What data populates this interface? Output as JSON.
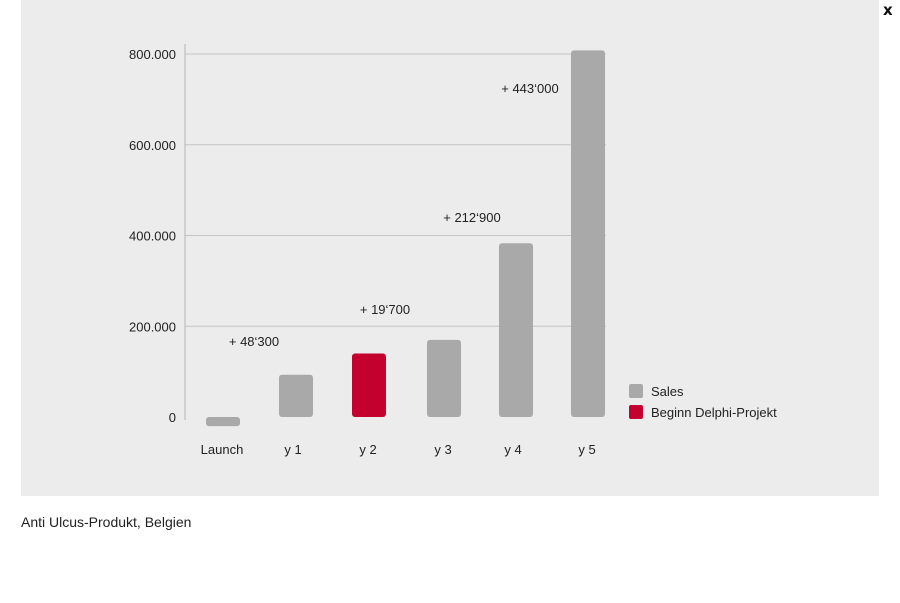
{
  "close_label": "x",
  "caption": "Anti Ulcus-Produkt, Belgien",
  "chart_data": {
    "type": "bar",
    "title": "",
    "xlabel": "",
    "ylabel": "",
    "ylim": [
      -20000,
      820000
    ],
    "yticks": [
      0,
      200000,
      400000,
      600000,
      800000
    ],
    "ytick_labels": [
      "0",
      "200.000",
      "400.000",
      "600.000",
      "800.000"
    ],
    "grid": true,
    "legend_position": "right",
    "categories": [
      "Launch",
      "y 1",
      "y 2",
      "y 3",
      "y 4",
      "y 5"
    ],
    "values": [
      -20000,
      93000,
      140000,
      170000,
      383000,
      808000
    ],
    "highlight_category": "y 2",
    "annotations": [
      {
        "category": "y 1",
        "text": "+ 48‘300"
      },
      {
        "category": "y 2",
        "text": "+ 19‘700"
      },
      {
        "category": "y 4",
        "text": "+ 212‘900"
      },
      {
        "category": "y 5",
        "text": "+ 443‘000"
      }
    ],
    "legend": [
      {
        "label": "Sales",
        "color": "#a9a9aa"
      },
      {
        "label": "Beginn Delphi-Projekt",
        "color": "#c4002f"
      }
    ],
    "colors": {
      "bar": "#a9a9aa",
      "highlight": "#c4002f",
      "grid": "#c4c4c4",
      "axis": "#b5b5b5"
    }
  }
}
